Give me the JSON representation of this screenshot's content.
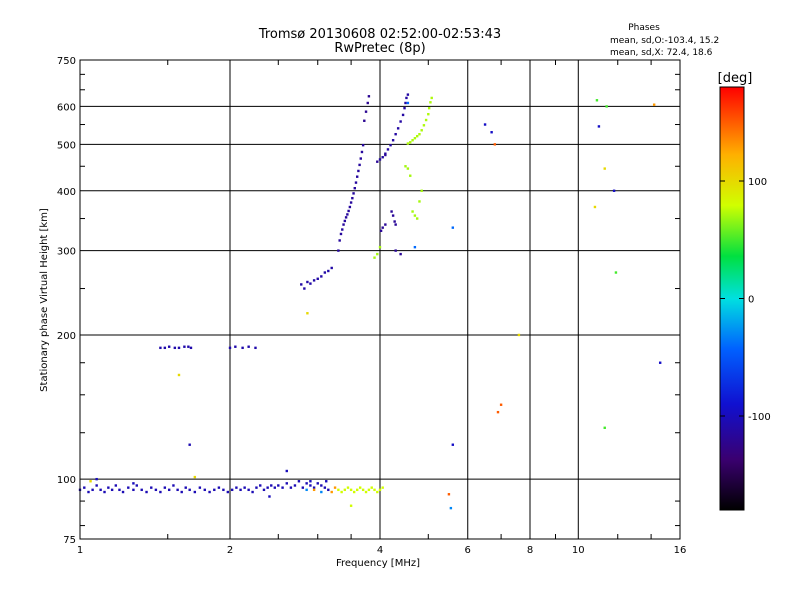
{
  "chart_data": {
    "type": "scatter",
    "title": "Tromsø 20130608 02:52:00-02:53:43",
    "subtitle": "RwPretec (8p)",
    "phases_info": {
      "heading": "Phases",
      "line_o": "mean, sd,O:-103.4, 15.2",
      "line_x": "mean, sd,X:  72.4, 18.6"
    },
    "xlabel": "Frequency [MHz]",
    "ylabel": "Stationary phase Virtual Height [km]",
    "x_scale": "log",
    "y_scale": "log",
    "xlim": [
      1,
      16
    ],
    "ylim": [
      75,
      750
    ],
    "x_ticks": [
      {
        "value": 1,
        "label": "1"
      },
      {
        "value": 2,
        "label": "2"
      },
      {
        "value": 4,
        "label": "4"
      },
      {
        "value": 6,
        "label": "6"
      },
      {
        "value": 8,
        "label": "8"
      },
      {
        "value": 10,
        "label": "10"
      },
      {
        "value": 16,
        "label": "16"
      }
    ],
    "y_ticks": [
      {
        "value": 75,
        "label": "75"
      },
      {
        "value": 100,
        "label": "100"
      },
      {
        "value": 200,
        "label": "200"
      },
      {
        "value": 300,
        "label": "300"
      },
      {
        "value": 400,
        "label": "400"
      },
      {
        "value": 500,
        "label": "500"
      },
      {
        "value": 600,
        "label": "600"
      },
      {
        "value": 750,
        "label": "750"
      }
    ],
    "grid": true,
    "colorbar": {
      "label": "[deg]",
      "range": [
        -180,
        180
      ],
      "ticks": [
        {
          "value": 100,
          "label": "100"
        },
        {
          "value": 0,
          "label": "0"
        },
        {
          "value": -100,
          "label": "-100"
        }
      ]
    },
    "point_groups": [
      {
        "name": "E-layer trace",
        "phase": -103,
        "points": [
          [
            1.0,
            95
          ],
          [
            1.02,
            96
          ],
          [
            1.04,
            94
          ],
          [
            1.06,
            95
          ],
          [
            1.08,
            97
          ],
          [
            1.1,
            95
          ],
          [
            1.12,
            94
          ],
          [
            1.14,
            96
          ],
          [
            1.16,
            95
          ],
          [
            1.18,
            97
          ],
          [
            1.2,
            95
          ],
          [
            1.22,
            94
          ],
          [
            1.25,
            96
          ],
          [
            1.28,
            95
          ],
          [
            1.3,
            97
          ],
          [
            1.33,
            95
          ],
          [
            1.36,
            94
          ],
          [
            1.39,
            96
          ],
          [
            1.42,
            95
          ],
          [
            1.45,
            94
          ],
          [
            1.48,
            96
          ],
          [
            1.51,
            95
          ],
          [
            1.54,
            97
          ],
          [
            1.57,
            95
          ],
          [
            1.6,
            94
          ],
          [
            1.63,
            96
          ],
          [
            1.66,
            95
          ],
          [
            1.7,
            94
          ],
          [
            1.74,
            96
          ],
          [
            1.78,
            95
          ],
          [
            1.82,
            94
          ],
          [
            1.86,
            95
          ],
          [
            1.9,
            96
          ],
          [
            1.94,
            95
          ],
          [
            1.98,
            94
          ],
          [
            2.02,
            95
          ],
          [
            2.06,
            96
          ],
          [
            2.1,
            95
          ],
          [
            2.14,
            96
          ],
          [
            2.18,
            95
          ],
          [
            2.22,
            94
          ],
          [
            2.26,
            96
          ],
          [
            2.3,
            97
          ],
          [
            2.34,
            95
          ],
          [
            2.38,
            96
          ],
          [
            2.42,
            97
          ],
          [
            2.46,
            96
          ],
          [
            2.5,
            97
          ],
          [
            2.55,
            96
          ],
          [
            2.6,
            98
          ],
          [
            2.65,
            96
          ],
          [
            2.7,
            97
          ],
          [
            2.75,
            99
          ],
          [
            2.8,
            96
          ],
          [
            2.85,
            98
          ],
          [
            2.9,
            97
          ],
          [
            2.95,
            96
          ],
          [
            3.0,
            98
          ],
          [
            3.05,
            97
          ],
          [
            3.1,
            96
          ],
          [
            3.15,
            95
          ]
        ]
      },
      {
        "name": "E-layer stragglers",
        "phase": -100,
        "points": [
          [
            1.08,
            100
          ],
          [
            1.28,
            98
          ],
          [
            2.4,
            92
          ],
          [
            2.6,
            104
          ],
          [
            2.9,
            99
          ],
          [
            3.12,
            99
          ]
        ]
      },
      {
        "name": "Es blanket echo",
        "phase": -108,
        "points": [
          [
            1.45,
            188
          ],
          [
            1.48,
            188
          ],
          [
            1.51,
            189
          ],
          [
            1.55,
            188
          ],
          [
            1.58,
            188
          ],
          [
            1.62,
            189
          ],
          [
            1.65,
            189
          ],
          [
            1.67,
            188
          ],
          [
            2.0,
            188
          ],
          [
            2.05,
            189
          ],
          [
            2.12,
            188
          ],
          [
            2.18,
            189
          ],
          [
            2.25,
            188
          ]
        ]
      },
      {
        "name": "Scattered echo 1",
        "phase": -105,
        "points": [
          [
            1.66,
            118
          ]
        ]
      },
      {
        "name": "Yellow blips",
        "phase": 100,
        "points": [
          [
            1.58,
            165
          ],
          [
            2.86,
            222
          ],
          [
            1.05,
            99
          ],
          [
            1.7,
            101
          ]
        ]
      },
      {
        "name": "Orange E points",
        "phase": 130,
        "points": [
          [
            2.95,
            95
          ],
          [
            3.2,
            94
          ],
          [
            3.25,
            96
          ]
        ]
      },
      {
        "name": "Cyan E points",
        "phase": -30,
        "points": [
          [
            2.85,
            95
          ],
          [
            3.05,
            94
          ]
        ]
      },
      {
        "name": "Yellow-green E trace",
        "phase": 80,
        "points": [
          [
            3.3,
            95
          ],
          [
            3.35,
            94
          ],
          [
            3.4,
            95
          ],
          [
            3.45,
            96
          ],
          [
            3.5,
            95
          ],
          [
            3.55,
            94
          ],
          [
            3.6,
            95
          ],
          [
            3.65,
            96
          ],
          [
            3.7,
            95
          ],
          [
            3.75,
            94
          ],
          [
            3.8,
            95
          ],
          [
            3.85,
            96
          ],
          [
            3.9,
            95
          ],
          [
            3.95,
            94
          ],
          [
            4.0,
            95
          ],
          [
            4.05,
            96
          ],
          [
            3.5,
            88
          ]
        ]
      },
      {
        "name": "F trace low",
        "phase": -110,
        "points": [
          [
            2.78,
            255
          ],
          [
            2.82,
            250
          ],
          [
            2.86,
            258
          ],
          [
            2.9,
            256
          ],
          [
            2.95,
            260
          ],
          [
            3.0,
            262
          ],
          [
            3.05,
            265
          ],
          [
            3.1,
            270
          ],
          [
            3.15,
            272
          ],
          [
            3.2,
            276
          ]
        ]
      },
      {
        "name": "F trace lower branch",
        "phase": -115,
        "points": [
          [
            3.3,
            300
          ],
          [
            3.32,
            315
          ],
          [
            3.34,
            325
          ],
          [
            3.36,
            332
          ],
          [
            3.38,
            340
          ],
          [
            3.4,
            346
          ],
          [
            3.42,
            352
          ],
          [
            3.44,
            357
          ],
          [
            3.46,
            363
          ],
          [
            3.48,
            370
          ],
          [
            3.5,
            378
          ],
          [
            3.52,
            386
          ],
          [
            3.54,
            395
          ],
          [
            3.56,
            405
          ],
          [
            3.58,
            416
          ],
          [
            3.6,
            428
          ],
          [
            3.62,
            440
          ],
          [
            3.64,
            453
          ],
          [
            3.66,
            467
          ],
          [
            3.68,
            482
          ],
          [
            3.7,
            498
          ]
        ]
      },
      {
        "name": "F trace upper branch",
        "phase": -120,
        "points": [
          [
            3.72,
            560
          ],
          [
            3.75,
            585
          ],
          [
            3.78,
            610
          ],
          [
            3.8,
            630
          ]
        ]
      },
      {
        "name": "O-mode F2 trace",
        "phase": -112,
        "points": [
          [
            4.0,
            465
          ],
          [
            4.05,
            470
          ],
          [
            4.1,
            478
          ],
          [
            4.15,
            488
          ],
          [
            4.2,
            498
          ],
          [
            4.25,
            510
          ],
          [
            4.3,
            525
          ],
          [
            4.35,
            540
          ],
          [
            4.4,
            558
          ],
          [
            4.45,
            576
          ],
          [
            4.48,
            595
          ],
          [
            4.5,
            610
          ],
          [
            4.52,
            625
          ],
          [
            4.55,
            635
          ]
        ]
      },
      {
        "name": "O-mode F2 cluster",
        "phase": -118,
        "points": [
          [
            4.02,
            330
          ],
          [
            4.05,
            335
          ],
          [
            4.1,
            340
          ],
          [
            3.95,
            460
          ],
          [
            4.1,
            475
          ],
          [
            4.22,
            362
          ],
          [
            4.25,
            355
          ],
          [
            4.28,
            345
          ],
          [
            4.3,
            340
          ],
          [
            4.3,
            300
          ],
          [
            4.4,
            295
          ]
        ]
      },
      {
        "name": "X-mode F2 trace",
        "phase": 72,
        "points": [
          [
            4.55,
            502
          ],
          [
            4.6,
            505
          ],
          [
            4.65,
            510
          ],
          [
            4.7,
            515
          ],
          [
            4.75,
            520
          ],
          [
            4.8,
            525
          ],
          [
            4.85,
            535
          ],
          [
            4.9,
            548
          ],
          [
            4.95,
            562
          ],
          [
            5.0,
            578
          ],
          [
            5.02,
            595
          ],
          [
            5.05,
            612
          ],
          [
            5.08,
            625
          ]
        ]
      },
      {
        "name": "X-mode scattered",
        "phase": 70,
        "points": [
          [
            4.5,
            450
          ],
          [
            4.55,
            445
          ],
          [
            4.6,
            430
          ],
          [
            4.65,
            362
          ],
          [
            4.7,
            355
          ],
          [
            4.75,
            350
          ],
          [
            4.8,
            380
          ],
          [
            4.85,
            400
          ],
          [
            3.95,
            295
          ],
          [
            3.9,
            290
          ],
          [
            4.0,
            305
          ]
        ]
      },
      {
        "name": "Cyan F points",
        "phase": -40,
        "points": [
          [
            5.6,
            335
          ],
          [
            4.55,
            610
          ],
          [
            4.7,
            305
          ]
        ]
      },
      {
        "name": "Right scattered blue",
        "phase": -95,
        "points": [
          [
            6.5,
            550
          ],
          [
            6.7,
            530
          ],
          [
            5.6,
            118
          ],
          [
            11.0,
            545
          ],
          [
            11.8,
            400
          ],
          [
            14.6,
            175
          ]
        ]
      },
      {
        "name": "Right scattered red",
        "phase": 150,
        "points": [
          [
            6.8,
            500
          ],
          [
            6.9,
            138
          ],
          [
            7.0,
            143
          ],
          [
            5.5,
            93
          ]
        ]
      },
      {
        "name": "Right scattered yellow",
        "phase": 100,
        "points": [
          [
            10.8,
            370
          ],
          [
            11.3,
            445
          ],
          [
            7.6,
            200
          ]
        ]
      },
      {
        "name": "Right scattered green",
        "phase": 50,
        "points": [
          [
            10.9,
            618
          ],
          [
            11.4,
            600
          ],
          [
            11.3,
            128
          ],
          [
            11.9,
            270
          ]
        ]
      },
      {
        "name": "Right scattered orange",
        "phase": 130,
        "points": [
          [
            14.2,
            605
          ]
        ]
      },
      {
        "name": "Right scattered cyan",
        "phase": -30,
        "points": [
          [
            5.55,
            87
          ]
        ]
      }
    ]
  }
}
